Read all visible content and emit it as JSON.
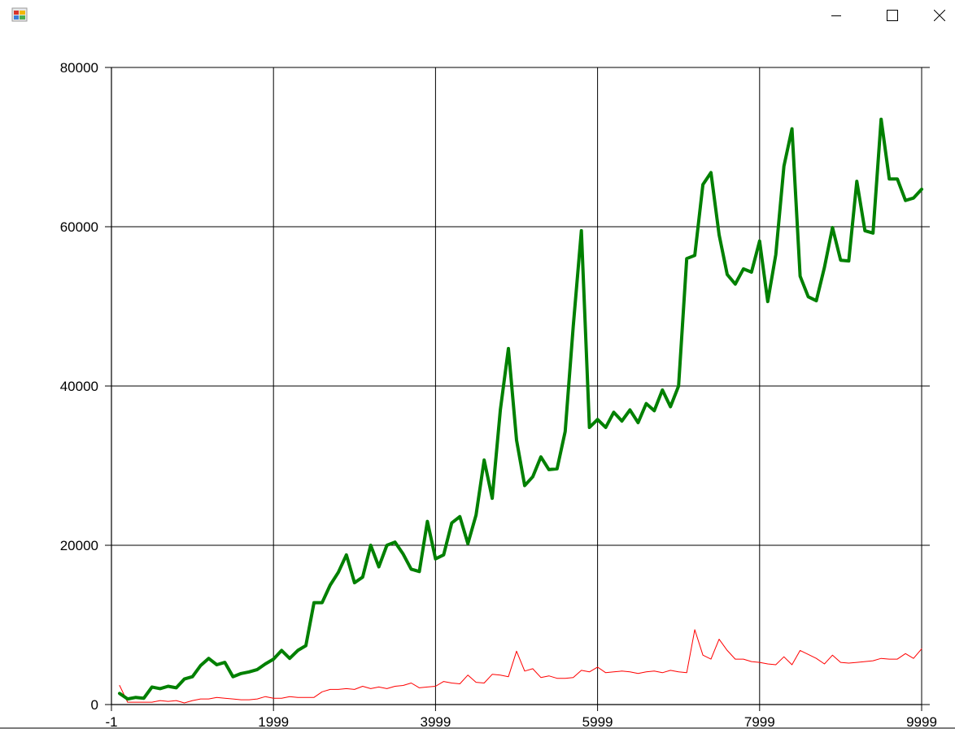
{
  "window": {
    "icons": {
      "app": "app-icon",
      "minimize": "minimize-icon",
      "maximize": "maximize-icon",
      "close": "close-icon"
    }
  },
  "chart_data": {
    "type": "line",
    "title": "",
    "xlabel": "",
    "ylabel": "",
    "xlim": [
      -1,
      9999
    ],
    "ylim": [
      0,
      80000
    ],
    "x_ticks": [
      -1,
      1999,
      3999,
      5999,
      7999,
      9999
    ],
    "y_ticks": [
      0,
      20000,
      40000,
      60000,
      80000
    ],
    "grid": true,
    "legend": "none",
    "x": [
      99,
      199,
      299,
      399,
      499,
      599,
      699,
      799,
      899,
      999,
      1099,
      1199,
      1299,
      1399,
      1499,
      1599,
      1699,
      1799,
      1899,
      1999,
      2099,
      2199,
      2299,
      2399,
      2499,
      2599,
      2699,
      2799,
      2899,
      2999,
      3099,
      3199,
      3299,
      3399,
      3499,
      3599,
      3699,
      3799,
      3899,
      3999,
      4099,
      4199,
      4299,
      4399,
      4499,
      4599,
      4699,
      4799,
      4899,
      4999,
      5099,
      5199,
      5299,
      5399,
      5499,
      5599,
      5699,
      5799,
      5899,
      5999,
      6099,
      6199,
      6299,
      6399,
      6499,
      6599,
      6699,
      6799,
      6899,
      6999,
      7099,
      7199,
      7299,
      7399,
      7499,
      7599,
      7699,
      7799,
      7899,
      7999,
      8099,
      8199,
      8299,
      8399,
      8499,
      8599,
      8699,
      8799,
      8899,
      8999,
      9099,
      9199,
      9299,
      9399,
      9499,
      9599,
      9699,
      9799,
      9899,
      9999
    ],
    "series": [
      {
        "color": "#008000",
        "width": 4,
        "values": [
          1400,
          700,
          900,
          800,
          2200,
          2000,
          2300,
          2100,
          3200,
          3500,
          4900,
          5800,
          5000,
          5300,
          3500,
          3900,
          4100,
          4400,
          5100,
          5700,
          6800,
          5800,
          6800,
          7400,
          12800,
          12800,
          15000,
          16600,
          18800,
          15300,
          16000,
          20000,
          17300,
          20000,
          20400,
          18900,
          17000,
          16700,
          23000,
          18300,
          18800,
          22800,
          23600,
          20200,
          23800,
          30700,
          25900,
          37000,
          44700,
          33200,
          27500,
          28600,
          31100,
          29500,
          29600,
          34300,
          47500,
          59500,
          34800,
          35800,
          34800,
          36700,
          35600,
          37000,
          35400,
          37800,
          36900,
          39500,
          37400,
          40000,
          56000,
          56400,
          65300,
          66800,
          59000,
          54000,
          52800,
          54700,
          54300,
          58200,
          50600,
          56500,
          67600,
          72300,
          53800,
          51200,
          50700,
          54900,
          59900,
          55800,
          55700,
          65700,
          59500,
          59200,
          73500,
          66000,
          66000,
          63300,
          63600,
          64700
        ]
      },
      {
        "color": "#ff0000",
        "width": 1,
        "values": [
          2400,
          300,
          300,
          300,
          300,
          500,
          400,
          500,
          200,
          500,
          700,
          700,
          900,
          800,
          700,
          600,
          600,
          700,
          1000,
          800,
          800,
          1000,
          900,
          900,
          900,
          1600,
          1900,
          1900,
          2000,
          1900,
          2300,
          2000,
          2200,
          2000,
          2300,
          2400,
          2700,
          2100,
          2200,
          2300,
          2900,
          2700,
          2600,
          3700,
          2800,
          2700,
          3800,
          3700,
          3500,
          6700,
          4200,
          4500,
          3400,
          3600,
          3300,
          3300,
          3400,
          4300,
          4100,
          4700,
          4000,
          4100,
          4200,
          4100,
          3900,
          4100,
          4200,
          4000,
          4300,
          4100,
          4000,
          9400,
          6200,
          5700,
          8200,
          6800,
          5700,
          5700,
          5400,
          5300,
          5100,
          5000,
          6000,
          5000,
          6800,
          6300,
          5800,
          5100,
          6200,
          5300,
          5200,
          5300,
          5400,
          5500,
          5800,
          5700,
          5700,
          6400,
          5800,
          7000
        ]
      }
    ]
  }
}
